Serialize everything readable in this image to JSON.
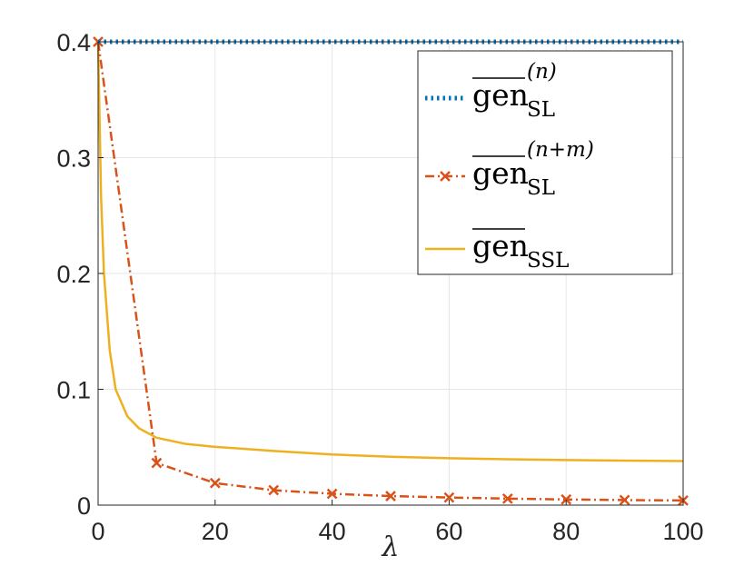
{
  "chart_data": {
    "type": "line",
    "title": "",
    "xlabel": "λ",
    "ylabel": "",
    "xlim": [
      0,
      100
    ],
    "ylim": [
      0,
      0.4
    ],
    "xticks": [
      0,
      20,
      40,
      60,
      80,
      100
    ],
    "yticks": [
      0,
      0.1,
      0.2,
      0.3,
      0.4
    ],
    "xtick_labels": [
      "0",
      "20",
      "40",
      "60",
      "80",
      "100"
    ],
    "ytick_labels": [
      "0",
      "0.1",
      "0.2",
      "0.3",
      "0.4"
    ],
    "grid": true,
    "legend_position": "top-right",
    "series": [
      {
        "legend": {
          "main": "gen",
          "sub": "SL",
          "sup": "(n)"
        },
        "color": "#0072BD",
        "style": "dotted",
        "marker": "none",
        "x": [
          0,
          100
        ],
        "y": [
          0.4,
          0.4
        ]
      },
      {
        "legend": {
          "main": "gen",
          "sub": "SL",
          "sup": "(n+m)"
        },
        "color": "#D95319",
        "style": "dashdot",
        "marker": "x",
        "x": [
          0,
          10,
          20,
          30,
          40,
          50,
          60,
          70,
          80,
          90,
          100
        ],
        "y": [
          0.4,
          0.0364,
          0.019,
          0.0129,
          0.0098,
          0.0078,
          0.0066,
          0.0056,
          0.0049,
          0.0044,
          0.004
        ]
      },
      {
        "legend": {
          "main": "gen",
          "sub": "SSL",
          "sup": ""
        },
        "color": "#EDB120",
        "style": "solid",
        "marker": "none",
        "x": [
          0,
          0.5,
          1,
          2,
          3,
          5,
          7,
          10,
          15,
          20,
          30,
          40,
          50,
          60,
          70,
          80,
          90,
          100
        ],
        "y": [
          0.4,
          0.267,
          0.2,
          0.133,
          0.1,
          0.0767,
          0.0663,
          0.0582,
          0.0528,
          0.0503,
          0.0468,
          0.0437,
          0.0418,
          0.0405,
          0.0396,
          0.0389,
          0.0384,
          0.038
        ]
      }
    ]
  }
}
